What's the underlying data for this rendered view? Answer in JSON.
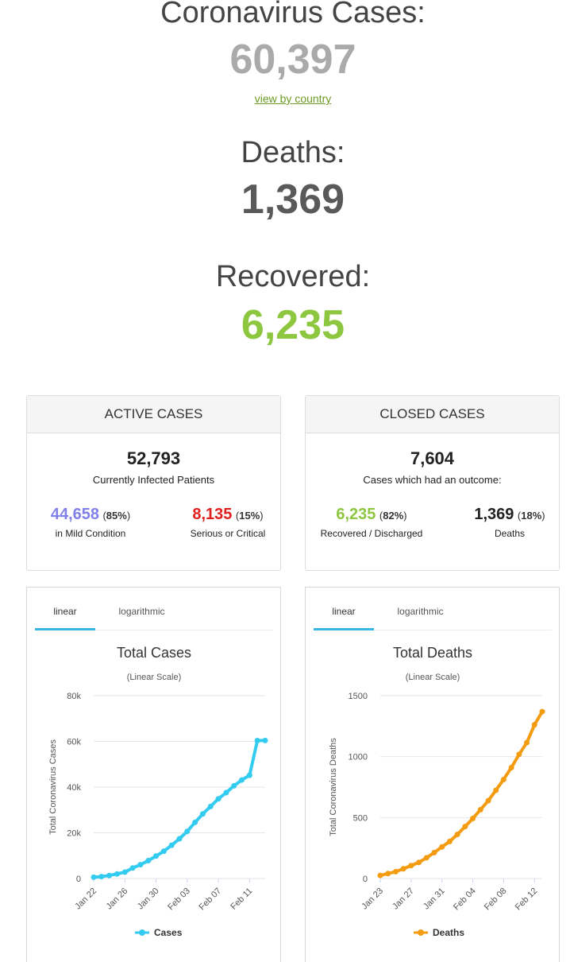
{
  "summary": {
    "cases_title": "Coronavirus Cases:",
    "cases_value": "60,397",
    "view_link": "view by country",
    "deaths_title": "Deaths:",
    "deaths_value": "1,369",
    "recovered_title": "Recovered:",
    "recovered_value": "6,235"
  },
  "active": {
    "title": "ACTIVE CASES",
    "total": "52,793",
    "total_label": "Currently Infected Patients",
    "mild_value": "44,658",
    "mild_pct": "85%",
    "mild_label": "in Mild Condition",
    "serious_value": "8,135",
    "serious_pct": "15%",
    "serious_label": "Serious or Critical"
  },
  "closed": {
    "title": "CLOSED CASES",
    "total": "7,604",
    "total_label": "Cases which had an outcome:",
    "recovered_value": "6,235",
    "recovered_pct": "82%",
    "recovered_label": "Recovered / Discharged",
    "deaths_value": "1,369",
    "deaths_pct": "18%",
    "deaths_label": "Deaths"
  },
  "colors": {
    "cases_gray": "#aaaaaa",
    "deaths_gray": "#595959",
    "recovered_green": "#8dc63f",
    "mild_purple": "#8080e8",
    "serious_red": "#e02020",
    "cases_line": "#33ccf0",
    "deaths_line": "#f39c12",
    "tab_underline": "#38b6e6"
  },
  "tabs": {
    "linear": "linear",
    "logarithmic": "logarithmic"
  },
  "chart_data": [
    {
      "type": "line",
      "title": "Total Cases",
      "subtitle": "(Linear Scale)",
      "ylabel": "Total Coronavirus Cases",
      "xlabel": "",
      "ylim": [
        0,
        80000
      ],
      "yticks": [
        0,
        20000,
        40000,
        60000,
        80000
      ],
      "ytick_labels": [
        "0",
        "20k",
        "40k",
        "60k",
        "80k"
      ],
      "x": [
        "Jan 22",
        "Jan 23",
        "Jan 24",
        "Jan 25",
        "Jan 26",
        "Jan 27",
        "Jan 28",
        "Jan 29",
        "Jan 30",
        "Jan 31",
        "Feb 01",
        "Feb 02",
        "Feb 03",
        "Feb 04",
        "Feb 05",
        "Feb 06",
        "Feb 07",
        "Feb 08",
        "Feb 09",
        "Feb 10",
        "Feb 11",
        "Feb 12",
        "Feb 13"
      ],
      "xtick_labels": [
        "Jan 22",
        "Jan 26",
        "Jan 30",
        "Feb 03",
        "Feb 07",
        "Feb 11"
      ],
      "grid": true,
      "legend": "bottom",
      "series": [
        {
          "name": "Cases",
          "color": "#33ccf0",
          "values": [
            580,
            845,
            1320,
            2010,
            2800,
            4590,
            6060,
            7820,
            9830,
            11950,
            14550,
            17390,
            20630,
            24550,
            28280,
            31530,
            34880,
            37560,
            40550,
            43100,
            45170,
            60330,
            60397
          ]
        }
      ]
    },
    {
      "type": "line",
      "title": "Total Deaths",
      "subtitle": "(Linear Scale)",
      "ylabel": "Total Coronavirus Deaths",
      "xlabel": "",
      "ylim": [
        0,
        1500
      ],
      "yticks": [
        0,
        500,
        1000,
        1500
      ],
      "ytick_labels": [
        "0",
        "500",
        "1000",
        "1500"
      ],
      "x": [
        "Jan 23",
        "Jan 24",
        "Jan 25",
        "Jan 26",
        "Jan 27",
        "Jan 28",
        "Jan 29",
        "Jan 30",
        "Jan 31",
        "Feb 01",
        "Feb 02",
        "Feb 03",
        "Feb 04",
        "Feb 05",
        "Feb 06",
        "Feb 07",
        "Feb 08",
        "Feb 09",
        "Feb 10",
        "Feb 11",
        "Feb 12",
        "Feb 13"
      ],
      "xtick_labels": [
        "Jan 23",
        "Jan 27",
        "Jan 31",
        "Feb 04",
        "Feb 08",
        "Feb 12"
      ],
      "grid": true,
      "legend": "bottom",
      "series": [
        {
          "name": "Deaths",
          "color": "#f39c12",
          "values": [
            25,
            41,
            56,
            80,
            106,
            132,
            170,
            213,
            259,
            304,
            362,
            426,
            492,
            565,
            638,
            724,
            813,
            910,
            1018,
            1115,
            1261,
            1369
          ]
        }
      ]
    }
  ]
}
